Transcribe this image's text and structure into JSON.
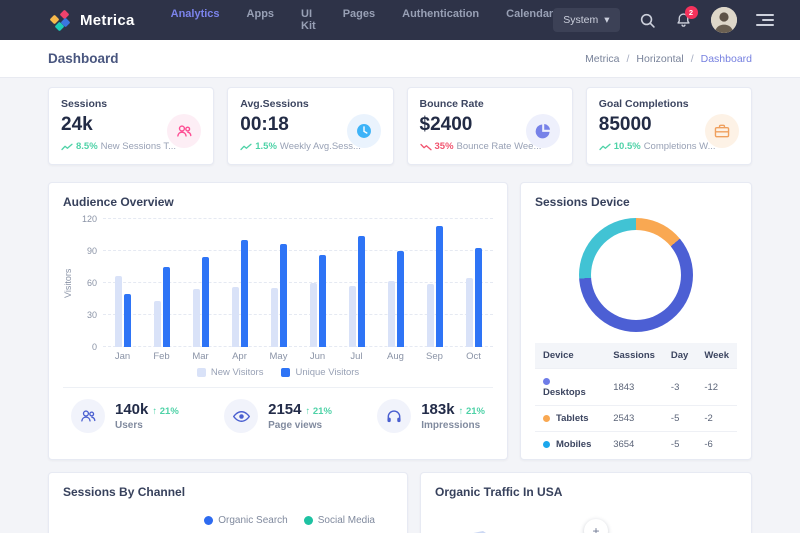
{
  "colors": {
    "topbar_bg": "#2e3348",
    "accent_blue": "#2e74f6",
    "light_bar": "#d9e2f8",
    "indigo": "#4a5fd0",
    "positive_green": "#4ed2a7",
    "negative_red": "#f1536e"
  },
  "navbar": {
    "brand": "Metrica",
    "items": [
      {
        "label": "Analytics",
        "active": true
      },
      {
        "label": "Apps",
        "active": false
      },
      {
        "label": "UI Kit",
        "active": false
      },
      {
        "label": "Pages",
        "active": false
      },
      {
        "label": "Authentication",
        "active": false
      },
      {
        "label": "Calendar",
        "active": false
      }
    ],
    "system_dropdown": "System",
    "caret": "▾",
    "notification_count": "2"
  },
  "page_header": {
    "title": "Dashboard",
    "breadcrumb": [
      "Metrica",
      "Horizontal",
      "Dashboard"
    ],
    "separator": "/"
  },
  "stat_cards": [
    {
      "label": "Sessions",
      "value": "24k",
      "icon": "users-icon",
      "accent": "#fd4d93",
      "tint": "#fdeef5",
      "trend_pct": "8.5%",
      "trend_dir": "up",
      "trend_color": "#4ed2a7",
      "trend_text": "New Sessions T..."
    },
    {
      "label": "Avg.Sessions",
      "value": "00:18",
      "icon": "clock-icon",
      "accent": "#3db3f8",
      "tint": "#eaf3fd",
      "trend_pct": "1.5%",
      "trend_dir": "up",
      "trend_color": "#4ed2a7",
      "trend_text": "Weekly Avg.Sess..."
    },
    {
      "label": "Bounce Rate",
      "value": "$2400",
      "icon": "pie-icon",
      "accent": "#7782e8",
      "tint": "#eef0fc",
      "trend_pct": "35%",
      "trend_dir": "down",
      "trend_color": "#f1536e",
      "trend_text": "Bounce Rate Wee..."
    },
    {
      "label": "Goal Completions",
      "value": "85000",
      "icon": "briefcase-icon",
      "accent": "#efa05e",
      "tint": "#fdf2e6",
      "trend_pct": "10.5%",
      "trend_dir": "up",
      "trend_color": "#4ed2a7",
      "trend_text": "Completions W..."
    }
  ],
  "audience_overview": {
    "title": "Audience Overview",
    "chart_data": {
      "type": "bar",
      "categories": [
        "Jan",
        "Feb",
        "Mar",
        "Apr",
        "May",
        "Jun",
        "Jul",
        "Aug",
        "Sep",
        "Oct"
      ],
      "series": [
        {
          "name": "New Visitors",
          "color": "#d9e2f8",
          "values": [
            67,
            43,
            54,
            56,
            55,
            60,
            57,
            62,
            59,
            65
          ]
        },
        {
          "name": "Unique Visitors",
          "color": "#2e74f6",
          "values": [
            50,
            75,
            84,
            100,
            97,
            86,
            104,
            90,
            113,
            93
          ]
        }
      ],
      "title": "Audience Overview",
      "xlabel": "",
      "ylabel": "Visitors",
      "ylim": [
        0,
        120
      ],
      "yticks": [
        0,
        30,
        60,
        90,
        120
      ],
      "grid": "dashed-horizontal",
      "legend_position": "bottom"
    },
    "summary_stats": [
      {
        "icon": "group-icon",
        "value": "140k",
        "delta_arrow": "↑",
        "delta": "21%",
        "label": "Users"
      },
      {
        "icon": "eye-icon",
        "value": "2154",
        "delta_arrow": "↑",
        "delta": "21%",
        "label": "Page views"
      },
      {
        "icon": "headphones-icon",
        "value": "183k",
        "delta_arrow": "↑",
        "delta": "21%",
        "label": "Impressions"
      }
    ]
  },
  "sessions_device": {
    "title": "Sessions Device",
    "chart_data": {
      "type": "pie",
      "donut": true,
      "start_angle_deg": 0,
      "segments": [
        {
          "label": "Tablets",
          "value": 14,
          "color": "#f9a852"
        },
        {
          "label": "Desktops",
          "value": 60,
          "color": "#4c5fd4"
        },
        {
          "label": "Mobiles",
          "value": 26,
          "color": "#41c3d4"
        }
      ]
    },
    "table": {
      "headers": [
        "Device",
        "Sassions",
        "Day",
        "Week"
      ],
      "rows": [
        {
          "dot": "#6e7ce8",
          "device": "Desktops",
          "sassions": "1843",
          "day": "-3",
          "week": "-12"
        },
        {
          "dot": "#f9a852",
          "device": "Tablets",
          "sassions": "2543",
          "day": "-5",
          "week": "-2"
        },
        {
          "dot": "#1ca7ec",
          "device": "Mobiles",
          "sassions": "3654",
          "day": "-5",
          "week": "-6"
        }
      ]
    }
  },
  "sessions_by_channel": {
    "title": "Sessions By Channel",
    "legend": [
      {
        "label": "Organic Search",
        "color": "#2e6bf0"
      },
      {
        "label": "Social Media",
        "color": "#1ec2a2"
      }
    ]
  },
  "organic_traffic": {
    "title": "Organic Traffic In USA",
    "zoom_button": "+"
  }
}
